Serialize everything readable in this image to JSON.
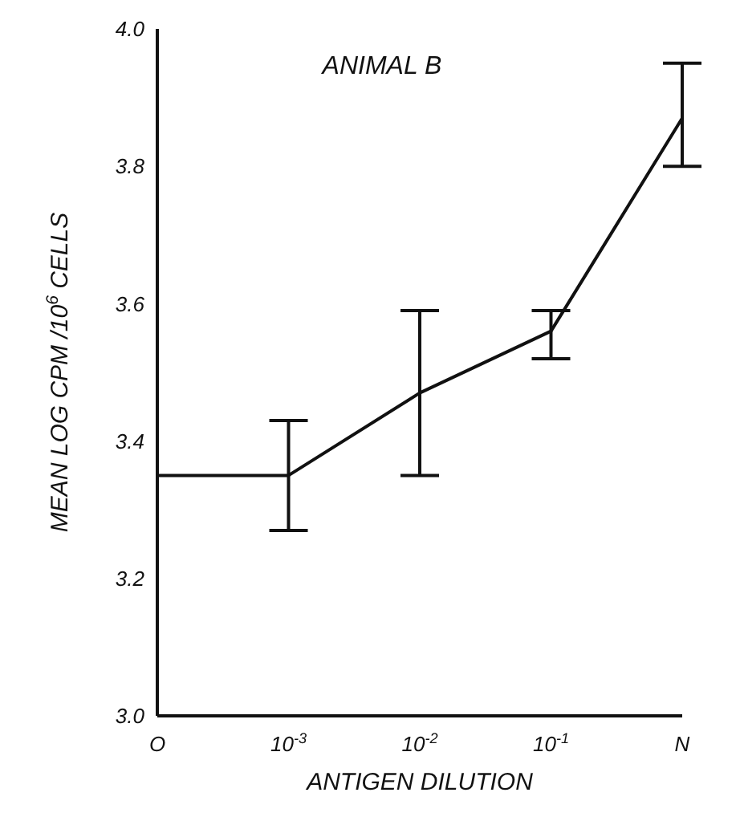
{
  "chart_data": {
    "type": "line",
    "title": "ANIMAL B",
    "xlabel": "ANTIGEN DILUTION",
    "ylabel": "MEAN LOG CPM /10$^{6}$ CELLS",
    "categories": [
      "O",
      "10$^{-3}$",
      "10$^{-2}$",
      "10$^{-1}$",
      "N"
    ],
    "series": [
      {
        "color": "#111111",
        "values": [
          3.35,
          3.35,
          3.47,
          3.56,
          3.87
        ],
        "errors": [
          null,
          [
            3.27,
            3.43
          ],
          [
            3.35,
            3.59
          ],
          [
            3.52,
            3.59
          ],
          [
            3.8,
            3.95
          ]
        ]
      }
    ],
    "ylim": [
      3.0,
      4.0
    ],
    "yticks": [
      {
        "value": 3.0,
        "label": "3.0"
      },
      3.2,
      3.4,
      3.6,
      3.8,
      {
        "value": 4.0,
        "label": "4.0"
      }
    ],
    "grid": false,
    "legend": false,
    "marker": "none",
    "line_style": "solid"
  }
}
